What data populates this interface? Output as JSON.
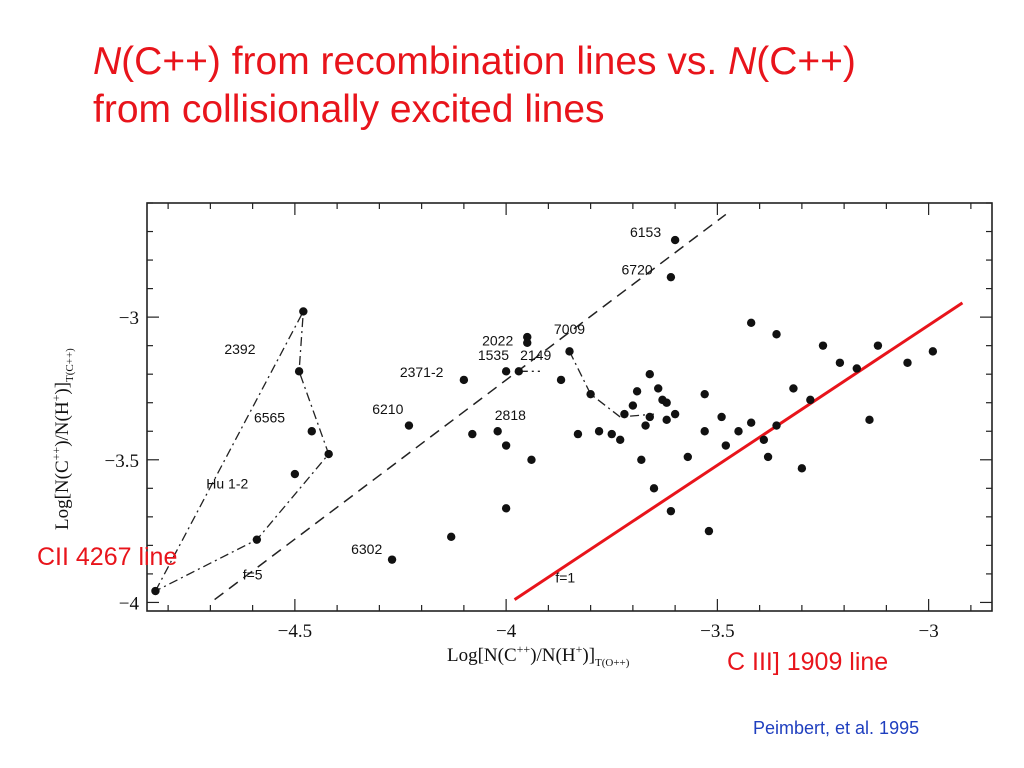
{
  "slide": {
    "title_line1_part1_italic": "N",
    "title_line1_part2": "(C++) from recombination lines vs. ",
    "title_line1_part3_italic": "N",
    "title_line1_part4": "(C++)",
    "title_line2": "from collisionally excited lines",
    "annotation_cii": "CII 4267 line",
    "annotation_ciii": "C III] 1909 line",
    "credit": "Peimbert, et al. 1995",
    "accent_color": "#e8141b",
    "credit_color": "#1f3fbf"
  },
  "chart_data": {
    "type": "scatter",
    "xlabel_parts": [
      "Log[N(C",
      "++",
      ")/N(H",
      "+",
      ")]",
      "T(O++)"
    ],
    "ylabel_parts": [
      "Log[N(C",
      "++",
      ")/N(H",
      "+",
      ")]",
      "T(C++)"
    ],
    "xlim": [
      -4.85,
      -2.85
    ],
    "ylim": [
      -4.03,
      -2.6
    ],
    "xticks": [
      -4.5,
      -4,
      -3.5,
      -3
    ],
    "xtick_labels": [
      "−4.5",
      "−4",
      "−3.5",
      "−3"
    ],
    "yticks": [
      -4,
      -3.5,
      -3
    ],
    "ytick_labels": [
      "−4",
      "−3.5",
      "−3"
    ],
    "grid": false,
    "points": [
      {
        "x": -4.83,
        "y": -3.96
      },
      {
        "x": -4.48,
        "y": -2.98
      },
      {
        "x": -4.49,
        "y": -3.19
      },
      {
        "x": -4.46,
        "y": -3.4
      },
      {
        "x": -4.42,
        "y": -3.48
      },
      {
        "x": -4.5,
        "y": -3.55
      },
      {
        "x": -4.59,
        "y": -3.78
      },
      {
        "x": -4.27,
        "y": -3.85
      },
      {
        "x": -4.23,
        "y": -3.38
      },
      {
        "x": -4.13,
        "y": -3.77
      },
      {
        "x": -4.1,
        "y": -3.22
      },
      {
        "x": -4.08,
        "y": -3.41
      },
      {
        "x": -4.02,
        "y": -3.4
      },
      {
        "x": -4.0,
        "y": -3.45
      },
      {
        "x": -4.0,
        "y": -3.67
      },
      {
        "x": -4.0,
        "y": -3.19
      },
      {
        "x": -3.97,
        "y": -3.19
      },
      {
        "x": -3.95,
        "y": -3.09
      },
      {
        "x": -3.95,
        "y": -3.07
      },
      {
        "x": -3.94,
        "y": -3.5
      },
      {
        "x": -3.87,
        "y": -3.22
      },
      {
        "x": -3.85,
        "y": -3.12
      },
      {
        "x": -3.83,
        "y": -3.41
      },
      {
        "x": -3.8,
        "y": -3.27
      },
      {
        "x": -3.78,
        "y": -3.4
      },
      {
        "x": -3.75,
        "y": -3.41
      },
      {
        "x": -3.73,
        "y": -3.43
      },
      {
        "x": -3.72,
        "y": -3.34
      },
      {
        "x": -3.7,
        "y": -3.31
      },
      {
        "x": -3.69,
        "y": -3.26
      },
      {
        "x": -3.68,
        "y": -3.5
      },
      {
        "x": -3.67,
        "y": -3.38
      },
      {
        "x": -3.66,
        "y": -3.2
      },
      {
        "x": -3.66,
        "y": -3.35
      },
      {
        "x": -3.65,
        "y": -3.6
      },
      {
        "x": -3.64,
        "y": -3.25
      },
      {
        "x": -3.63,
        "y": -3.29
      },
      {
        "x": -3.62,
        "y": -3.3
      },
      {
        "x": -3.62,
        "y": -3.36
      },
      {
        "x": -3.61,
        "y": -3.68
      },
      {
        "x": -3.6,
        "y": -3.34
      },
      {
        "x": -3.57,
        "y": -3.49
      },
      {
        "x": -3.6,
        "y": -2.73
      },
      {
        "x": -3.61,
        "y": -2.86
      },
      {
        "x": -3.53,
        "y": -3.27
      },
      {
        "x": -3.53,
        "y": -3.4
      },
      {
        "x": -3.52,
        "y": -3.75
      },
      {
        "x": -3.49,
        "y": -3.35
      },
      {
        "x": -3.48,
        "y": -3.45
      },
      {
        "x": -3.45,
        "y": -3.4
      },
      {
        "x": -3.42,
        "y": -3.37
      },
      {
        "x": -3.42,
        "y": -3.02
      },
      {
        "x": -3.39,
        "y": -3.43
      },
      {
        "x": -3.38,
        "y": -3.49
      },
      {
        "x": -3.36,
        "y": -3.38
      },
      {
        "x": -3.36,
        "y": -3.06
      },
      {
        "x": -3.32,
        "y": -3.25
      },
      {
        "x": -3.3,
        "y": -3.53
      },
      {
        "x": -3.28,
        "y": -3.29
      },
      {
        "x": -3.25,
        "y": -3.1
      },
      {
        "x": -3.21,
        "y": -3.16
      },
      {
        "x": -3.17,
        "y": -3.18
      },
      {
        "x": -3.14,
        "y": -3.36
      },
      {
        "x": -3.12,
        "y": -3.1
      },
      {
        "x": -3.05,
        "y": -3.16
      },
      {
        "x": -2.99,
        "y": -3.12
      }
    ],
    "point_labels": [
      {
        "text": "6153",
        "x": -3.67,
        "y": -2.72
      },
      {
        "text": "6720",
        "x": -3.69,
        "y": -2.85
      },
      {
        "text": "7009",
        "x": -3.85,
        "y": -3.06
      },
      {
        "text": "2022",
        "x": -4.02,
        "y": -3.1
      },
      {
        "text": "1535",
        "x": -4.03,
        "y": -3.15
      },
      {
        "text": "2149",
        "x": -3.93,
        "y": -3.15
      },
      {
        "text": "2371-2",
        "x": -4.2,
        "y": -3.21
      },
      {
        "text": "2818",
        "x": -3.99,
        "y": -3.36
      },
      {
        "text": "6210",
        "x": -4.28,
        "y": -3.34
      },
      {
        "text": "2392",
        "x": -4.63,
        "y": -3.13
      },
      {
        "text": "6565",
        "x": -4.56,
        "y": -3.37
      },
      {
        "text": "Hu 1-2",
        "x": -4.66,
        "y": -3.6
      },
      {
        "text": "6302",
        "x": -4.33,
        "y": -3.83
      },
      {
        "text": "f=5",
        "x": -4.6,
        "y": -3.92
      },
      {
        "text": "f=1",
        "x": -3.86,
        "y": -3.93
      }
    ],
    "reference_lines": [
      {
        "name": "f=5",
        "style": "dashed",
        "points": [
          [
            -4.69,
            -3.99
          ],
          [
            -3.48,
            -2.64
          ]
        ]
      },
      {
        "name": "f=1",
        "style": "solid",
        "color": "#e8141b",
        "points": [
          [
            -3.98,
            -3.99
          ],
          [
            -2.92,
            -2.95
          ]
        ]
      }
    ],
    "connectors": [
      {
        "style": "dashdot",
        "points": [
          [
            -4.83,
            -3.96
          ],
          [
            -4.48,
            -2.98
          ],
          [
            -4.49,
            -3.19
          ],
          [
            -4.42,
            -3.48
          ],
          [
            -4.59,
            -3.78
          ],
          [
            -4.83,
            -3.96
          ]
        ]
      },
      {
        "style": "dashdot",
        "points": [
          [
            -3.85,
            -3.12
          ],
          [
            -3.8,
            -3.27
          ],
          [
            -3.73,
            -3.35
          ],
          [
            -3.65,
            -3.34
          ]
        ]
      },
      {
        "style": "dashdot",
        "points": [
          [
            -3.97,
            -3.19
          ],
          [
            -3.92,
            -3.19
          ]
        ]
      }
    ]
  }
}
